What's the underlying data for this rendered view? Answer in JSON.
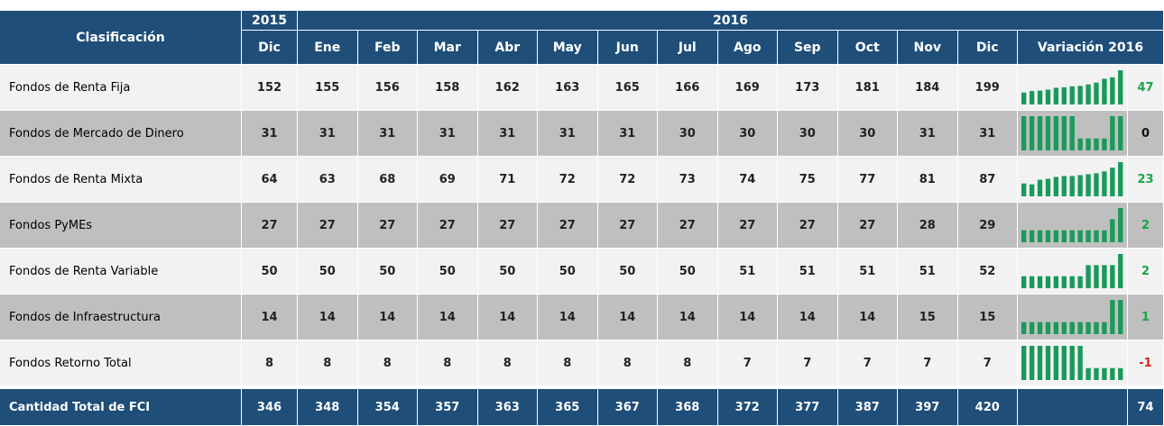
{
  "header": {
    "title": "Clasificación",
    "years": [
      "2015",
      "2016"
    ],
    "months2015": [
      "Dic"
    ],
    "months2016": [
      "Ene",
      "Feb",
      "Mar",
      "Abr",
      "May",
      "Jun",
      "Jul",
      "Ago",
      "Sep",
      "Oct",
      "Nov",
      "Dic"
    ],
    "variation": "Variación 2016"
  },
  "rows": [
    {
      "label": "Fondos de Renta Fija",
      "values": [
        152,
        155,
        156,
        158,
        162,
        163,
        165,
        166,
        169,
        173,
        181,
        184,
        199
      ],
      "variation": 47
    },
    {
      "label": "Fondos de Mercado de Dinero",
      "values": [
        31,
        31,
        31,
        31,
        31,
        31,
        31,
        30,
        30,
        30,
        30,
        31,
        31
      ],
      "variation": 0
    },
    {
      "label": "Fondos de Renta Mixta",
      "values": [
        64,
        63,
        68,
        69,
        71,
        72,
        72,
        73,
        74,
        75,
        77,
        81,
        87
      ],
      "variation": 23
    },
    {
      "label": "Fondos PyMEs",
      "values": [
        27,
        27,
        27,
        27,
        27,
        27,
        27,
        27,
        27,
        27,
        27,
        28,
        29
      ],
      "variation": 2
    },
    {
      "label": "Fondos de Renta Variable",
      "values": [
        50,
        50,
        50,
        50,
        50,
        50,
        50,
        50,
        51,
        51,
        51,
        51,
        52
      ],
      "variation": 2
    },
    {
      "label": "Fondos de Infraestructura",
      "values": [
        14,
        14,
        14,
        14,
        14,
        14,
        14,
        14,
        14,
        14,
        14,
        15,
        15
      ],
      "variation": 1
    },
    {
      "label": "Fondos Retorno Total",
      "values": [
        8,
        8,
        8,
        8,
        8,
        8,
        8,
        8,
        7,
        7,
        7,
        7,
        7
      ],
      "variation": -1
    }
  ],
  "total": {
    "label": "Cantidad Total de FCI",
    "values": [
      346,
      348,
      354,
      357,
      363,
      365,
      367,
      368,
      372,
      377,
      387,
      397,
      420
    ],
    "variation": 74
  }
}
